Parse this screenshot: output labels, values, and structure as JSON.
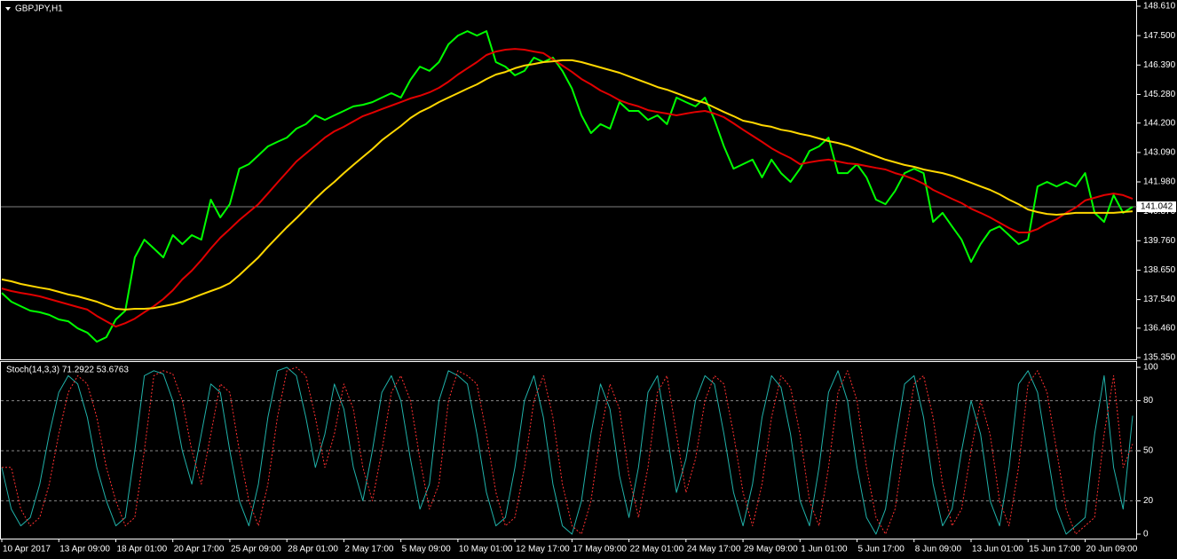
{
  "chart_data": {
    "type": "line",
    "title": "GBPJPY,H1",
    "y2_title": "Stoch(14,3,3) 71.2922 53.6763",
    "grid": false,
    "last_price": 141.042,
    "categories": [
      "10 Apr 2017",
      null,
      null,
      null,
      null,
      null,
      "13 Apr 09:00",
      null,
      null,
      null,
      null,
      null,
      "18 Apr 01:00",
      null,
      null,
      null,
      null,
      null,
      "20 Apr 17:00",
      null,
      null,
      null,
      null,
      null,
      "25 Apr 09:00",
      null,
      null,
      null,
      null,
      null,
      "28 Apr 01:00",
      null,
      null,
      null,
      null,
      null,
      "2 May 17:00",
      null,
      null,
      null,
      null,
      null,
      "5 May 09:00",
      null,
      null,
      null,
      null,
      null,
      "10 May 01:00",
      null,
      null,
      null,
      null,
      null,
      "12 May 17:00",
      null,
      null,
      null,
      null,
      null,
      "17 May 09:00",
      null,
      null,
      null,
      null,
      null,
      "22 May 01:00",
      null,
      null,
      null,
      null,
      null,
      "24 May 17:00",
      null,
      null,
      null,
      null,
      null,
      "29 May 09:00",
      null,
      null,
      null,
      null,
      null,
      "1 Jun 01:00",
      null,
      null,
      null,
      null,
      null,
      "5 Jun 17:00",
      null,
      null,
      null,
      null,
      null,
      "8 Jun 09:00",
      null,
      null,
      null,
      null,
      null,
      "13 Jun 01:00",
      null,
      null,
      null,
      null,
      null,
      "15 Jun 17:00",
      null,
      null,
      null,
      null,
      null,
      "20 Jun 09:00",
      null,
      null,
      null,
      null,
      null
    ],
    "ylim": [
      135.35,
      148.61
    ],
    "yticks": [
      {
        "value": 148.61,
        "label": "148.610"
      },
      {
        "value": 147.5,
        "label": "147.500"
      },
      {
        "value": 146.39,
        "label": "146.390"
      },
      {
        "value": 145.28,
        "label": "145.280"
      },
      {
        "value": 144.2,
        "label": "144.200"
      },
      {
        "value": 143.09,
        "label": "143.090"
      },
      {
        "value": 141.98,
        "label": "141.980"
      },
      {
        "value": 140.87,
        "label": "140.870"
      },
      {
        "value": 139.76,
        "label": "139.760"
      },
      {
        "value": 138.65,
        "label": "138.650"
      },
      {
        "value": 137.54,
        "label": "137.540"
      },
      {
        "value": 136.46,
        "label": "136.460"
      },
      {
        "value": 135.35,
        "label": "135.350"
      }
    ],
    "y2lim": [
      0,
      100
    ],
    "y2ticks": [
      100,
      80,
      50,
      20,
      0
    ],
    "series": [
      {
        "color": "#00ff00",
        "values": [
          137.79,
          137.46,
          137.29,
          137.12,
          137.06,
          136.96,
          136.79,
          136.72,
          136.45,
          136.29,
          135.95,
          136.12,
          136.79,
          137.12,
          139.13,
          139.8,
          139.47,
          139.13,
          139.97,
          139.63,
          139.97,
          139.8,
          141.31,
          140.64,
          141.14,
          142.48,
          142.65,
          142.98,
          143.32,
          143.49,
          143.65,
          143.99,
          144.16,
          144.49,
          144.32,
          144.49,
          144.66,
          144.83,
          144.89,
          144.99,
          145.16,
          145.33,
          145.16,
          145.83,
          146.33,
          146.17,
          146.5,
          147.17,
          147.5,
          147.67,
          147.5,
          147.67,
          146.5,
          146.33,
          146.0,
          146.17,
          146.67,
          146.5,
          146.67,
          146.17,
          145.5,
          144.49,
          143.82,
          144.16,
          143.99,
          144.99,
          144.66,
          144.66,
          144.32,
          144.49,
          144.16,
          145.16,
          144.99,
          144.83,
          145.16,
          144.32,
          143.32,
          142.48,
          142.65,
          142.82,
          142.15,
          142.82,
          142.31,
          141.98,
          142.48,
          143.15,
          143.32,
          143.65,
          142.31,
          142.31,
          142.65,
          142.15,
          141.31,
          141.14,
          141.64,
          142.31,
          142.48,
          142.31,
          140.47,
          140.81,
          140.3,
          139.8,
          138.96,
          139.63,
          140.14,
          140.3,
          139.97,
          139.63,
          139.8,
          141.81,
          141.98,
          141.81,
          141.98,
          141.81,
          142.31,
          140.81,
          140.47,
          141.48,
          140.81,
          141.04
        ]
      },
      {
        "color": "#e00000",
        "values": [
          137.96,
          137.86,
          137.79,
          137.73,
          137.66,
          137.56,
          137.46,
          137.36,
          137.26,
          137.16,
          136.92,
          136.72,
          136.52,
          136.65,
          136.82,
          137.06,
          137.29,
          137.56,
          137.89,
          138.3,
          138.63,
          139.03,
          139.47,
          139.87,
          140.2,
          140.54,
          140.84,
          141.14,
          141.54,
          141.95,
          142.35,
          142.75,
          143.05,
          143.35,
          143.65,
          143.89,
          144.06,
          144.26,
          144.46,
          144.59,
          144.73,
          144.86,
          144.99,
          145.13,
          145.23,
          145.36,
          145.53,
          145.76,
          146.03,
          146.27,
          146.5,
          146.77,
          146.9,
          146.97,
          147.0,
          146.97,
          146.9,
          146.84,
          146.6,
          146.37,
          146.13,
          145.86,
          145.66,
          145.43,
          145.26,
          145.06,
          144.93,
          144.83,
          144.69,
          144.62,
          144.56,
          144.49,
          144.56,
          144.62,
          144.66,
          144.56,
          144.42,
          144.19,
          143.95,
          143.72,
          143.49,
          143.25,
          143.05,
          142.88,
          142.65,
          142.72,
          142.78,
          142.82,
          142.75,
          142.68,
          142.65,
          142.58,
          142.51,
          142.45,
          142.31,
          142.21,
          142.08,
          141.91,
          141.68,
          141.51,
          141.34,
          141.18,
          140.97,
          140.81,
          140.64,
          140.44,
          140.24,
          140.07,
          140.07,
          140.2,
          140.41,
          140.57,
          140.81,
          141.01,
          141.28,
          141.38,
          141.48,
          141.54,
          141.48,
          141.34
        ]
      },
      {
        "color": "#ffd700",
        "values": [
          138.3,
          138.23,
          138.13,
          138.06,
          137.99,
          137.93,
          137.83,
          137.73,
          137.66,
          137.56,
          137.46,
          137.32,
          137.19,
          137.16,
          137.19,
          137.19,
          137.22,
          137.29,
          137.36,
          137.46,
          137.59,
          137.73,
          137.86,
          137.99,
          138.16,
          138.46,
          138.8,
          139.13,
          139.53,
          139.9,
          140.27,
          140.61,
          140.97,
          141.34,
          141.68,
          141.98,
          142.31,
          142.62,
          142.92,
          143.22,
          143.55,
          143.82,
          144.09,
          144.39,
          144.62,
          144.79,
          144.99,
          145.16,
          145.33,
          145.5,
          145.66,
          145.86,
          146.03,
          146.13,
          146.27,
          146.37,
          146.43,
          146.5,
          146.53,
          146.57,
          146.57,
          146.5,
          146.4,
          146.3,
          146.2,
          146.1,
          145.96,
          145.83,
          145.7,
          145.56,
          145.46,
          145.33,
          145.19,
          145.06,
          144.96,
          144.79,
          144.62,
          144.46,
          144.29,
          144.22,
          144.12,
          144.06,
          143.95,
          143.89,
          143.79,
          143.72,
          143.62,
          143.52,
          143.45,
          143.35,
          143.22,
          143.08,
          142.95,
          142.82,
          142.72,
          142.62,
          142.55,
          142.45,
          142.38,
          142.31,
          142.21,
          142.08,
          141.95,
          141.81,
          141.68,
          141.51,
          141.31,
          141.14,
          140.94,
          140.84,
          140.77,
          140.74,
          140.77,
          140.81,
          140.81,
          140.81,
          140.81,
          140.81,
          140.84,
          140.87
        ]
      },
      {
        "color": "#20b2aa",
        "axis": "y2",
        "values": [
          40,
          15,
          5,
          10,
          30,
          60,
          85,
          95,
          90,
          70,
          40,
          20,
          5,
          10,
          50,
          95,
          98,
          96,
          80,
          50,
          30,
          60,
          90,
          85,
          50,
          20,
          5,
          30,
          70,
          98,
          100,
          95,
          70,
          40,
          60,
          90,
          75,
          40,
          20,
          50,
          85,
          95,
          80,
          45,
          15,
          30,
          80,
          98,
          95,
          90,
          60,
          25,
          5,
          10,
          40,
          80,
          95,
          70,
          30,
          5,
          0,
          20,
          60,
          90,
          75,
          35,
          10,
          40,
          85,
          95,
          60,
          25,
          45,
          80,
          95,
          90,
          60,
          25,
          5,
          30,
          70,
          95,
          88,
          60,
          20,
          5,
          40,
          85,
          98,
          80,
          40,
          10,
          0,
          15,
          55,
          90,
          95,
          70,
          30,
          5,
          15,
          50,
          80,
          60,
          20,
          5,
          40,
          90,
          98,
          85,
          50,
          15,
          0,
          5,
          10,
          60,
          95,
          40,
          15,
          71
        ]
      },
      {
        "color": "#ff3030",
        "axis": "y2",
        "dashed": true,
        "values": [
          40,
          40,
          15,
          5,
          10,
          30,
          60,
          85,
          95,
          90,
          70,
          40,
          20,
          5,
          10,
          50,
          95,
          98,
          96,
          80,
          50,
          30,
          60,
          90,
          85,
          50,
          20,
          5,
          30,
          70,
          98,
          100,
          95,
          70,
          40,
          60,
          90,
          75,
          40,
          20,
          50,
          85,
          95,
          80,
          45,
          15,
          30,
          80,
          98,
          95,
          90,
          60,
          25,
          5,
          10,
          40,
          80,
          95,
          70,
          30,
          5,
          0,
          20,
          60,
          90,
          75,
          35,
          10,
          40,
          85,
          95,
          60,
          25,
          45,
          80,
          95,
          90,
          60,
          25,
          5,
          30,
          70,
          95,
          88,
          60,
          20,
          5,
          40,
          85,
          98,
          80,
          40,
          10,
          0,
          15,
          55,
          90,
          95,
          70,
          30,
          5,
          15,
          50,
          80,
          60,
          20,
          5,
          40,
          90,
          98,
          85,
          50,
          15,
          0,
          5,
          10,
          60,
          95,
          40,
          54
        ]
      }
    ]
  }
}
